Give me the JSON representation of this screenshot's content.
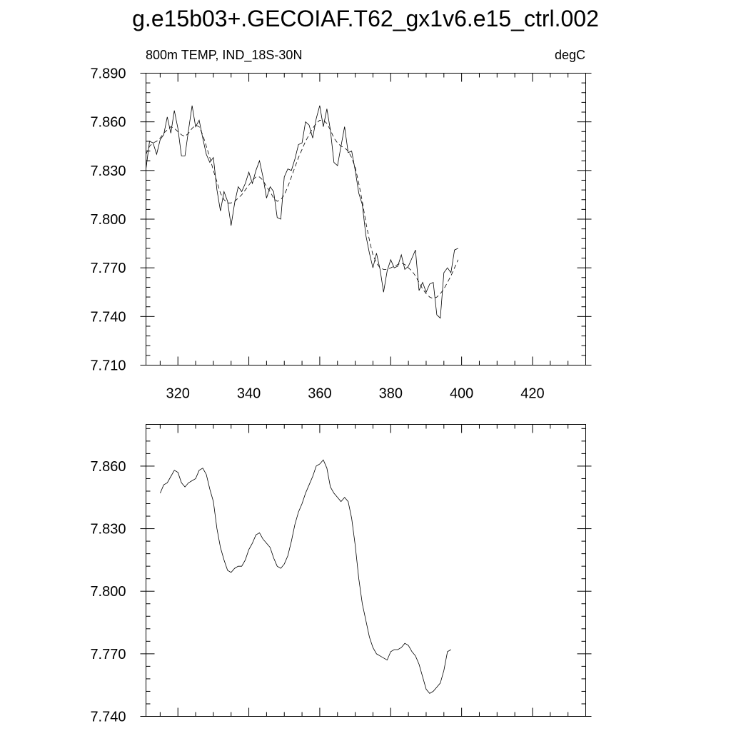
{
  "title": "g.e15b03+.GECOIAF.T62_gx1v6.e15_ctrl.002",
  "chart_data": [
    {
      "type": "line",
      "left_label": "800m TEMP, IND_18S-30N",
      "right_label": "degC",
      "xlim": [
        311,
        435
      ],
      "ylim": [
        7.71,
        7.89
      ],
      "xticks": [
        320,
        340,
        360,
        380,
        400,
        420
      ],
      "xtick_labels": [
        "320",
        "340",
        "360",
        "380",
        "400",
        "420"
      ],
      "yticks": [
        7.71,
        7.74,
        7.77,
        7.8,
        7.83,
        7.86,
        7.89
      ],
      "ytick_labels": [
        "7.710",
        "7.740",
        "7.770",
        "7.800",
        "7.830",
        "7.860",
        "7.890"
      ],
      "x_start": 311,
      "x_step": 1,
      "series": [
        {
          "style": "solid",
          "values": [
            7.831,
            7.848,
            7.847,
            7.84,
            7.849,
            7.852,
            7.863,
            7.853,
            7.867,
            7.856,
            7.839,
            7.839,
            7.855,
            7.87,
            7.857,
            7.861,
            7.85,
            7.84,
            7.835,
            7.838,
            7.818,
            7.805,
            7.817,
            7.811,
            7.796,
            7.81,
            7.82,
            7.817,
            7.822,
            7.829,
            7.822,
            7.83,
            7.836,
            7.826,
            7.813,
            7.82,
            7.817,
            7.801,
            7.8,
            7.826,
            7.831,
            7.83,
            7.837,
            7.846,
            7.847,
            7.86,
            7.858,
            7.85,
            7.862,
            7.87,
            7.857,
            7.868,
            7.855,
            7.835,
            7.833,
            7.845,
            7.857,
            7.841,
            7.842,
            7.83,
            7.816,
            7.809,
            7.79,
            7.779,
            7.77,
            7.779,
            7.769,
            7.755,
            7.768,
            7.775,
            7.77,
            7.771,
            7.778,
            7.769,
            7.771,
            7.776,
            7.781,
            7.756,
            7.761,
            7.755,
            7.76,
            7.761,
            7.741,
            7.739,
            7.767,
            7.77,
            7.767,
            7.781,
            7.782
          ]
        },
        {
          "style": "dashed",
          "values": [
            7.84,
            7.845,
            7.847,
            7.848,
            7.85,
            7.853,
            7.855,
            7.857,
            7.856,
            7.854,
            7.852,
            7.851,
            7.853,
            7.856,
            7.858,
            7.857,
            7.852,
            7.845,
            7.838,
            7.83,
            7.823,
            7.816,
            7.812,
            7.81,
            7.81,
            7.811,
            7.813,
            7.815,
            7.818,
            7.821,
            7.824,
            7.826,
            7.826,
            7.824,
            7.82,
            7.817,
            7.813,
            7.811,
            7.812,
            7.815,
            7.82,
            7.826,
            7.832,
            7.838,
            7.843,
            7.848,
            7.852,
            7.856,
            7.859,
            7.861,
            7.861,
            7.859,
            7.855,
            7.85,
            7.847,
            7.845,
            7.844,
            7.842,
            7.838,
            7.832,
            7.822,
            7.811,
            7.798,
            7.787,
            7.778,
            7.773,
            7.77,
            7.769,
            7.769,
            7.77,
            7.771,
            7.772,
            7.773,
            7.772,
            7.77,
            7.768,
            7.765,
            7.761,
            7.757,
            7.754,
            7.752,
            7.751,
            7.752,
            7.754,
            7.757,
            7.761,
            7.765,
            7.77,
            7.775
          ]
        }
      ]
    },
    {
      "type": "line",
      "xlim": [
        311,
        435
      ],
      "ylim": [
        7.74,
        7.88
      ],
      "xticks": [
        320,
        340,
        360,
        380,
        400,
        420
      ],
      "xtick_labels": [],
      "yticks": [
        7.74,
        7.77,
        7.8,
        7.83,
        7.86
      ],
      "ytick_labels": [
        "7.740",
        "7.770",
        "7.800",
        "7.830",
        "7.860"
      ],
      "x_start": 315,
      "x_step": 1,
      "series": [
        {
          "style": "solid",
          "values": [
            7.847,
            7.851,
            7.852,
            7.855,
            7.858,
            7.857,
            7.852,
            7.85,
            7.852,
            7.853,
            7.854,
            7.858,
            7.859,
            7.856,
            7.849,
            7.843,
            7.83,
            7.821,
            7.815,
            7.81,
            7.809,
            7.811,
            7.812,
            7.812,
            7.815,
            7.82,
            7.823,
            7.827,
            7.828,
            7.825,
            7.823,
            7.821,
            7.816,
            7.812,
            7.811,
            7.813,
            7.817,
            7.824,
            7.832,
            7.838,
            7.842,
            7.847,
            7.851,
            7.855,
            7.86,
            7.861,
            7.863,
            7.859,
            7.85,
            7.847,
            7.845,
            7.843,
            7.845,
            7.843,
            7.835,
            7.822,
            7.806,
            7.794,
            7.786,
            7.778,
            7.773,
            7.77,
            7.769,
            7.768,
            7.767,
            7.771,
            7.772,
            7.772,
            7.773,
            7.775,
            7.774,
            7.771,
            7.769,
            7.765,
            7.759,
            7.753,
            7.751,
            7.752,
            7.754,
            7.756,
            7.762,
            7.771,
            7.772
          ]
        }
      ]
    }
  ]
}
